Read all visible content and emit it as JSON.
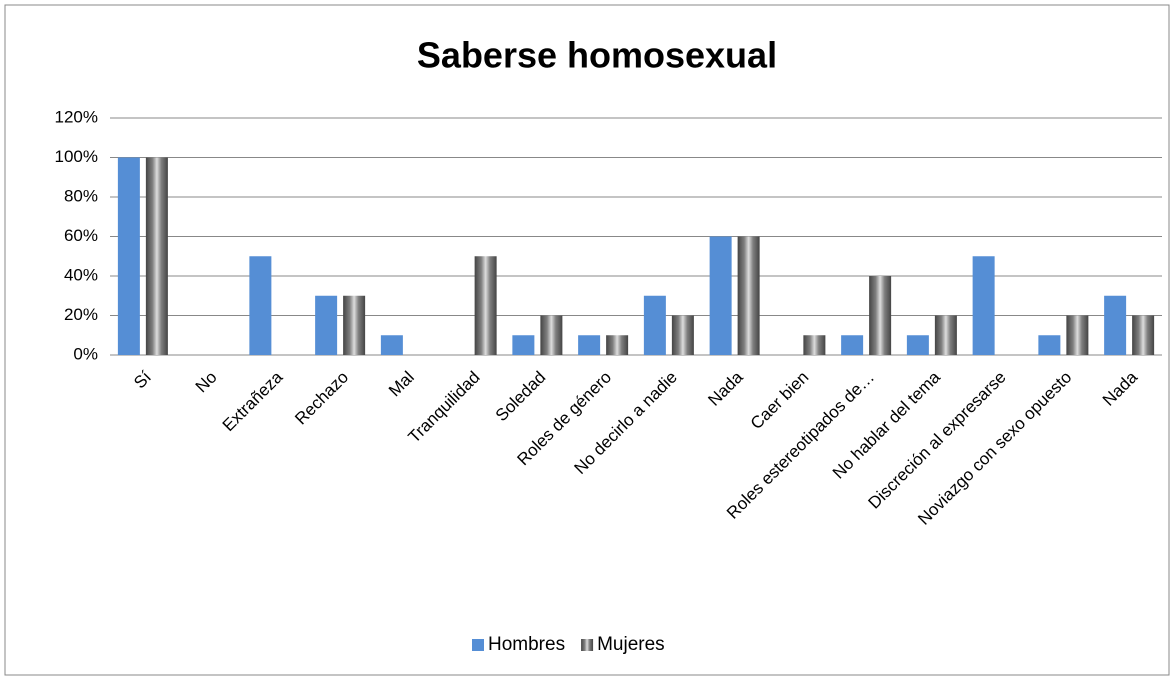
{
  "chart_data": {
    "type": "bar",
    "title": "Saberse homosexual",
    "categories": [
      "Sí",
      "No",
      "Extrañeza",
      "Rechazo",
      "Mal",
      "Tranquilidad",
      "Soledad",
      "Roles de género",
      "No decirlo a nadie",
      "Nada",
      "Caer bien",
      "Roles estereotipados de…",
      "No hablar del tema",
      "Discreción al expresarse",
      "Noviazgo con sexo opuesto",
      "Nada"
    ],
    "series": [
      {
        "name": "Hombres",
        "color": "#558ed5",
        "values": [
          100,
          0,
          50,
          30,
          10,
          0,
          10,
          10,
          30,
          60,
          0,
          10,
          10,
          50,
          10,
          30
        ]
      },
      {
        "name": "Mujeres",
        "color": "#7f7f7f",
        "values": [
          100,
          0,
          0,
          30,
          0,
          50,
          20,
          10,
          20,
          60,
          10,
          40,
          20,
          0,
          20,
          20
        ]
      }
    ],
    "ylim": [
      0,
      120
    ],
    "yticks": [
      {
        "value": 0,
        "label": "0%"
      },
      {
        "value": 20,
        "label": "20%"
      },
      {
        "value": 40,
        "label": "40%"
      },
      {
        "value": 60,
        "label": "60%"
      },
      {
        "value": 80,
        "label": "80%"
      },
      {
        "value": 100,
        "label": "100%"
      },
      {
        "value": 120,
        "label": "120%"
      }
    ],
    "grid": true,
    "legend": "bottom"
  }
}
